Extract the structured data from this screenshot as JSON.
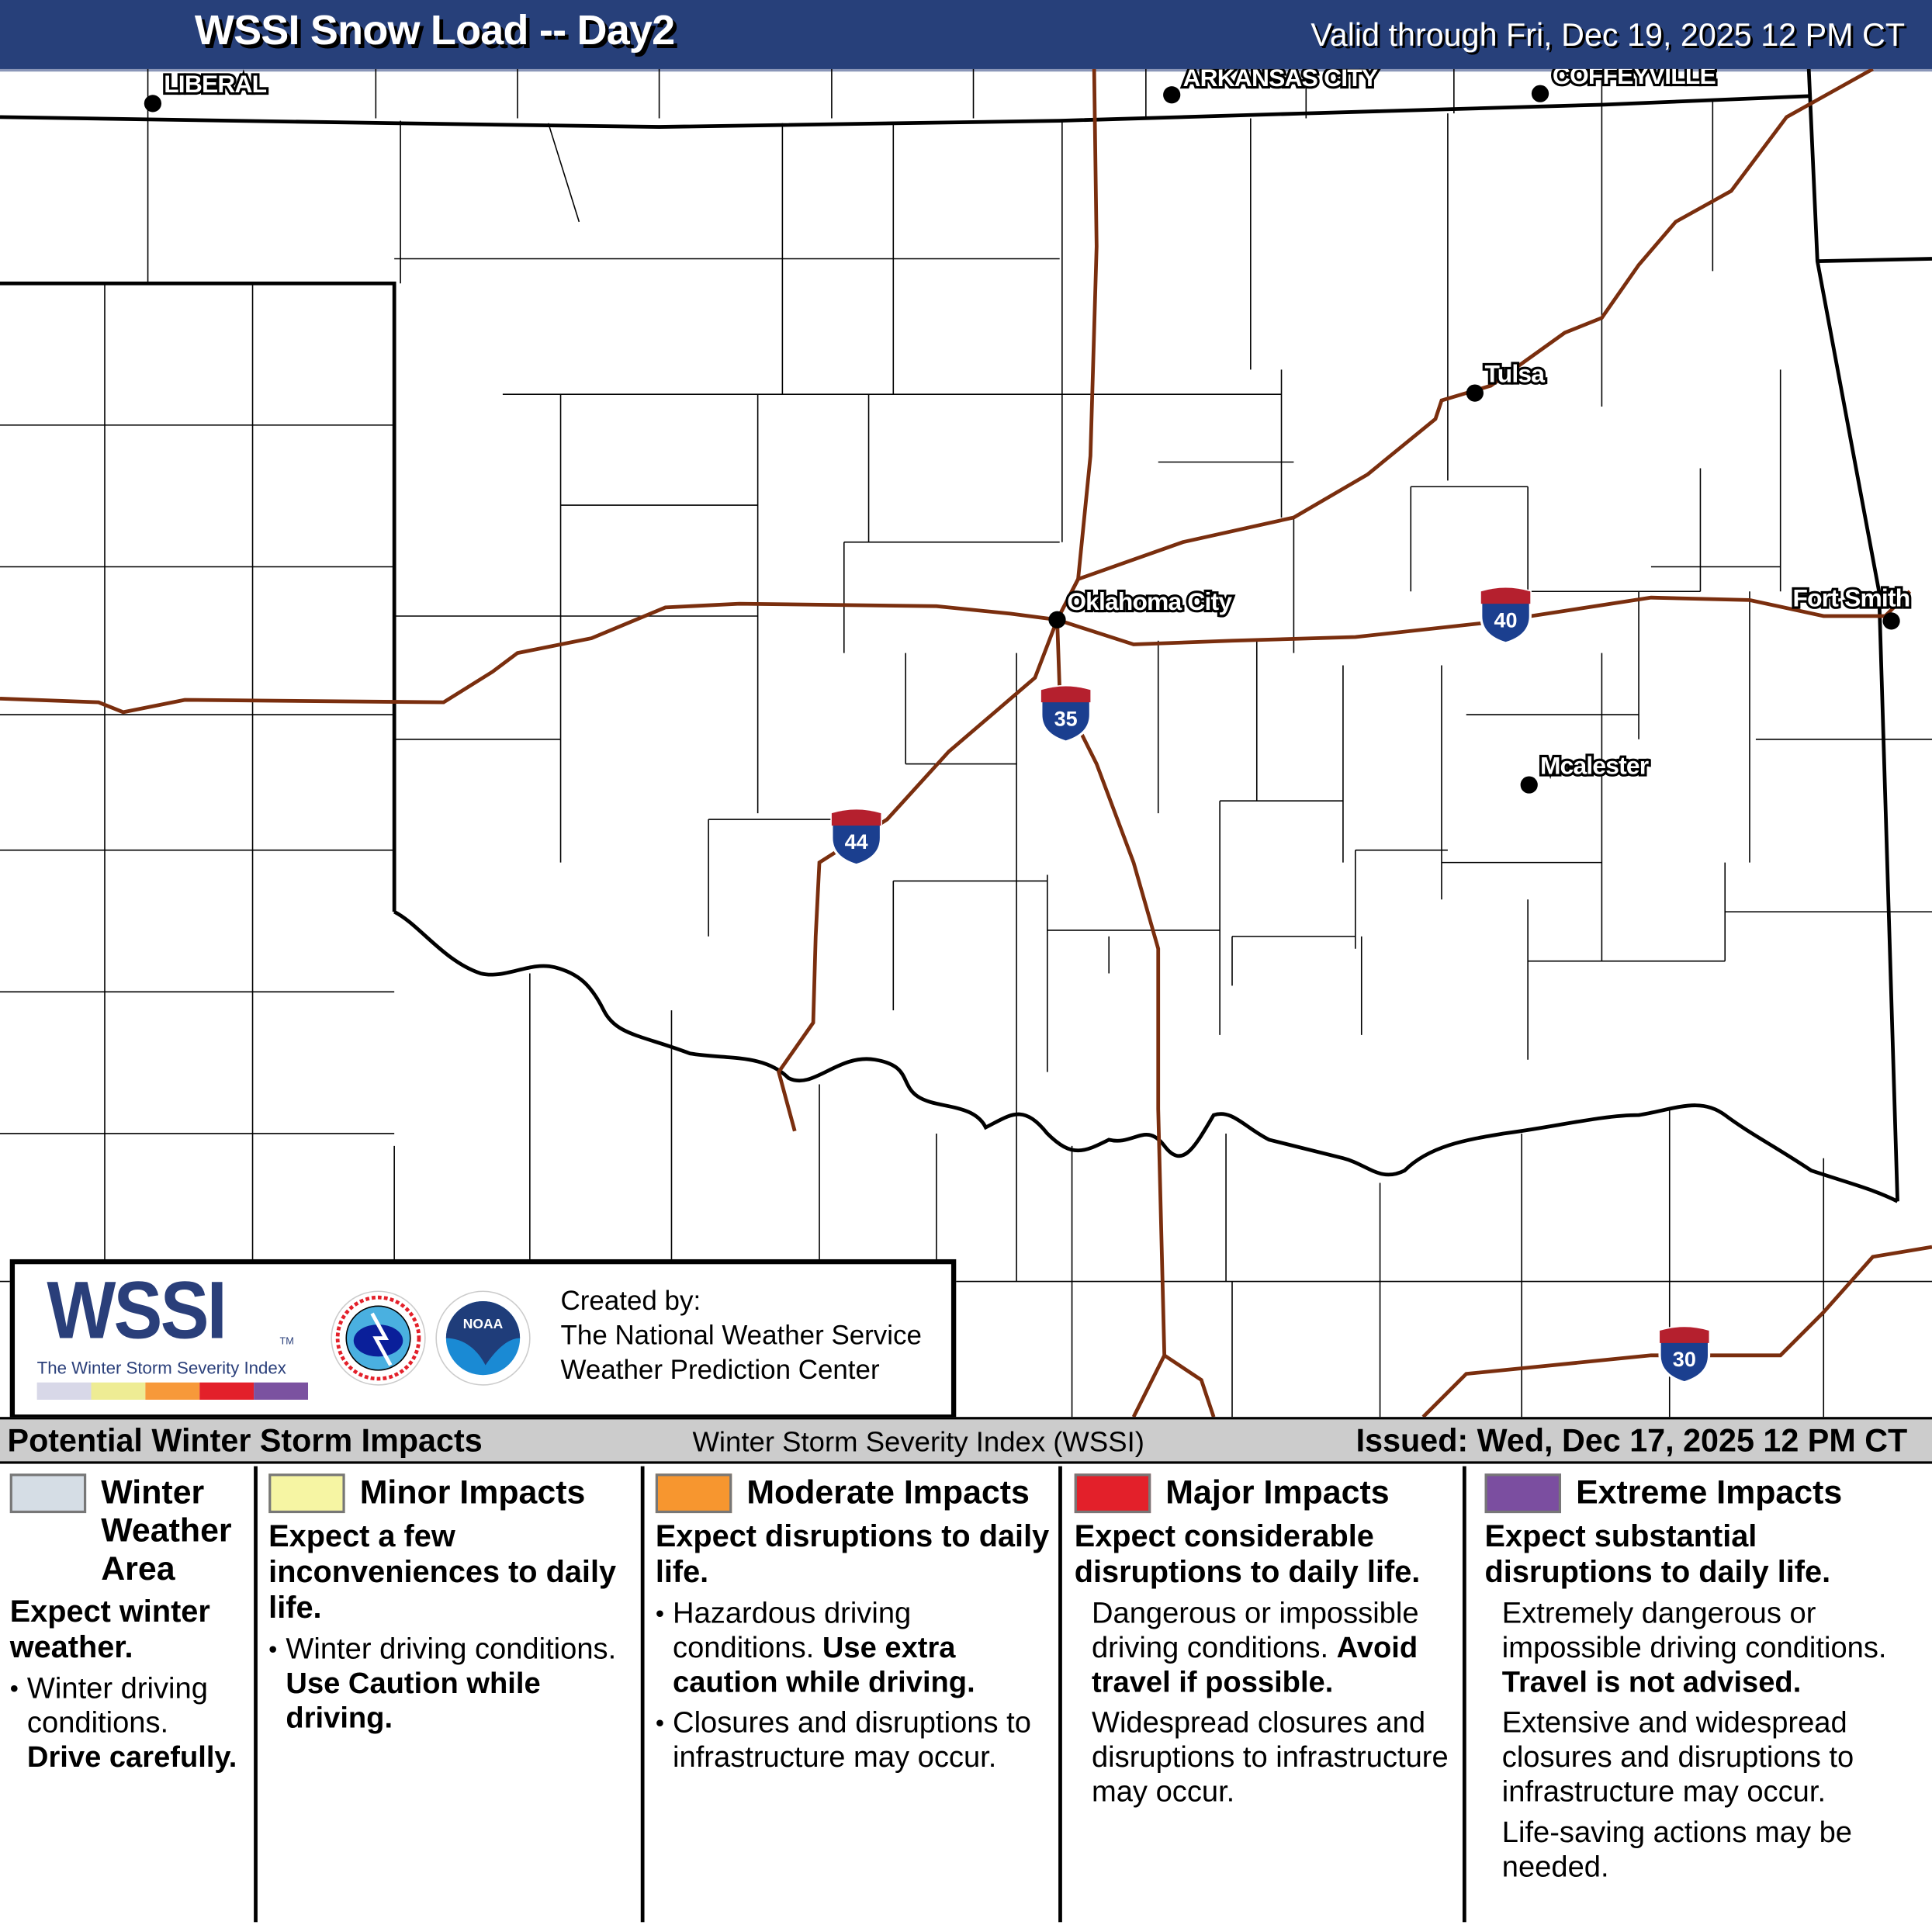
{
  "header": {
    "title": "WSSI Snow Load -- Day2",
    "valid": "Valid through Fri, Dec 19, 2025 12 PM CT"
  },
  "map": {
    "cities": [
      {
        "name": "LIBERAL"
      },
      {
        "name": "ARKANSAS CITY"
      },
      {
        "name": "COFFEYVILLE"
      },
      {
        "name": "Tulsa"
      },
      {
        "name": "Oklahoma City"
      },
      {
        "name": "Fort Smith"
      },
      {
        "name": "Mcalester"
      }
    ],
    "shields": [
      "44",
      "35",
      "40",
      "30"
    ],
    "colors": {
      "highway": "#7a2e0e",
      "state_border": "#000000",
      "county_border": "#000000"
    }
  },
  "logo": {
    "wssi": "WSSI",
    "tm": "TM",
    "subtitle": "The Winter Storm Severity Index",
    "created_by": "Created by:",
    "org1": "The National Weather Service",
    "org2": "Weather Prediction Center",
    "nws_text": "NATIONAL WEATHER SERVICE",
    "noaa_text": "NOAA"
  },
  "bar": {
    "left": "Potential Winter Storm Impacts",
    "middle": "Winter Storm Severity Index (WSSI)",
    "right": "Issued: Wed, Dec 17, 2025 12 PM CT"
  },
  "legend": [
    {
      "color": "#d5dde5",
      "title": "Winter Weather Area",
      "summary": "Expect winter weather.",
      "b1": "Winter driving conditions.",
      "b1b": "Drive carefully."
    },
    {
      "color": "#f6f5a3",
      "title": "Minor Impacts",
      "summary": "Expect a few inconveniences to daily life.",
      "b1": "Winter driving conditions.",
      "b1b": "Use Caution while driving."
    },
    {
      "color": "#f7962f",
      "title": "Moderate Impacts",
      "summary": "Expect disruptions to daily life.",
      "b1": "Hazardous driving conditions.",
      "b1b": "Use extra caution while driving.",
      "b2": "Closures and disruptions to infrastructure may occur."
    },
    {
      "color": "#e3202a",
      "title": "Major Impacts",
      "summary": "Expect considerable disruptions to daily life.",
      "b1": "Dangerous or impossible driving conditions.",
      "b1b": "Avoid travel if possible.",
      "b2": "Widespread closures and disruptions to infrastructure may occur."
    },
    {
      "color": "#7b4ea0",
      "title": "Extreme Impacts",
      "summary": "Expect substantial disruptions to daily life.",
      "b1": "Extremely dangerous or impossible driving conditions.",
      "b1b": "Travel is not advised.",
      "b2": "Extensive and widespread closures and disruptions to infrastructure may occur.",
      "b3": "Life-saving actions may be needed."
    }
  ],
  "swatch_colors": [
    "#d8d8e8",
    "#eeec94",
    "#f7993a",
    "#e3202a",
    "#7b52a0"
  ]
}
